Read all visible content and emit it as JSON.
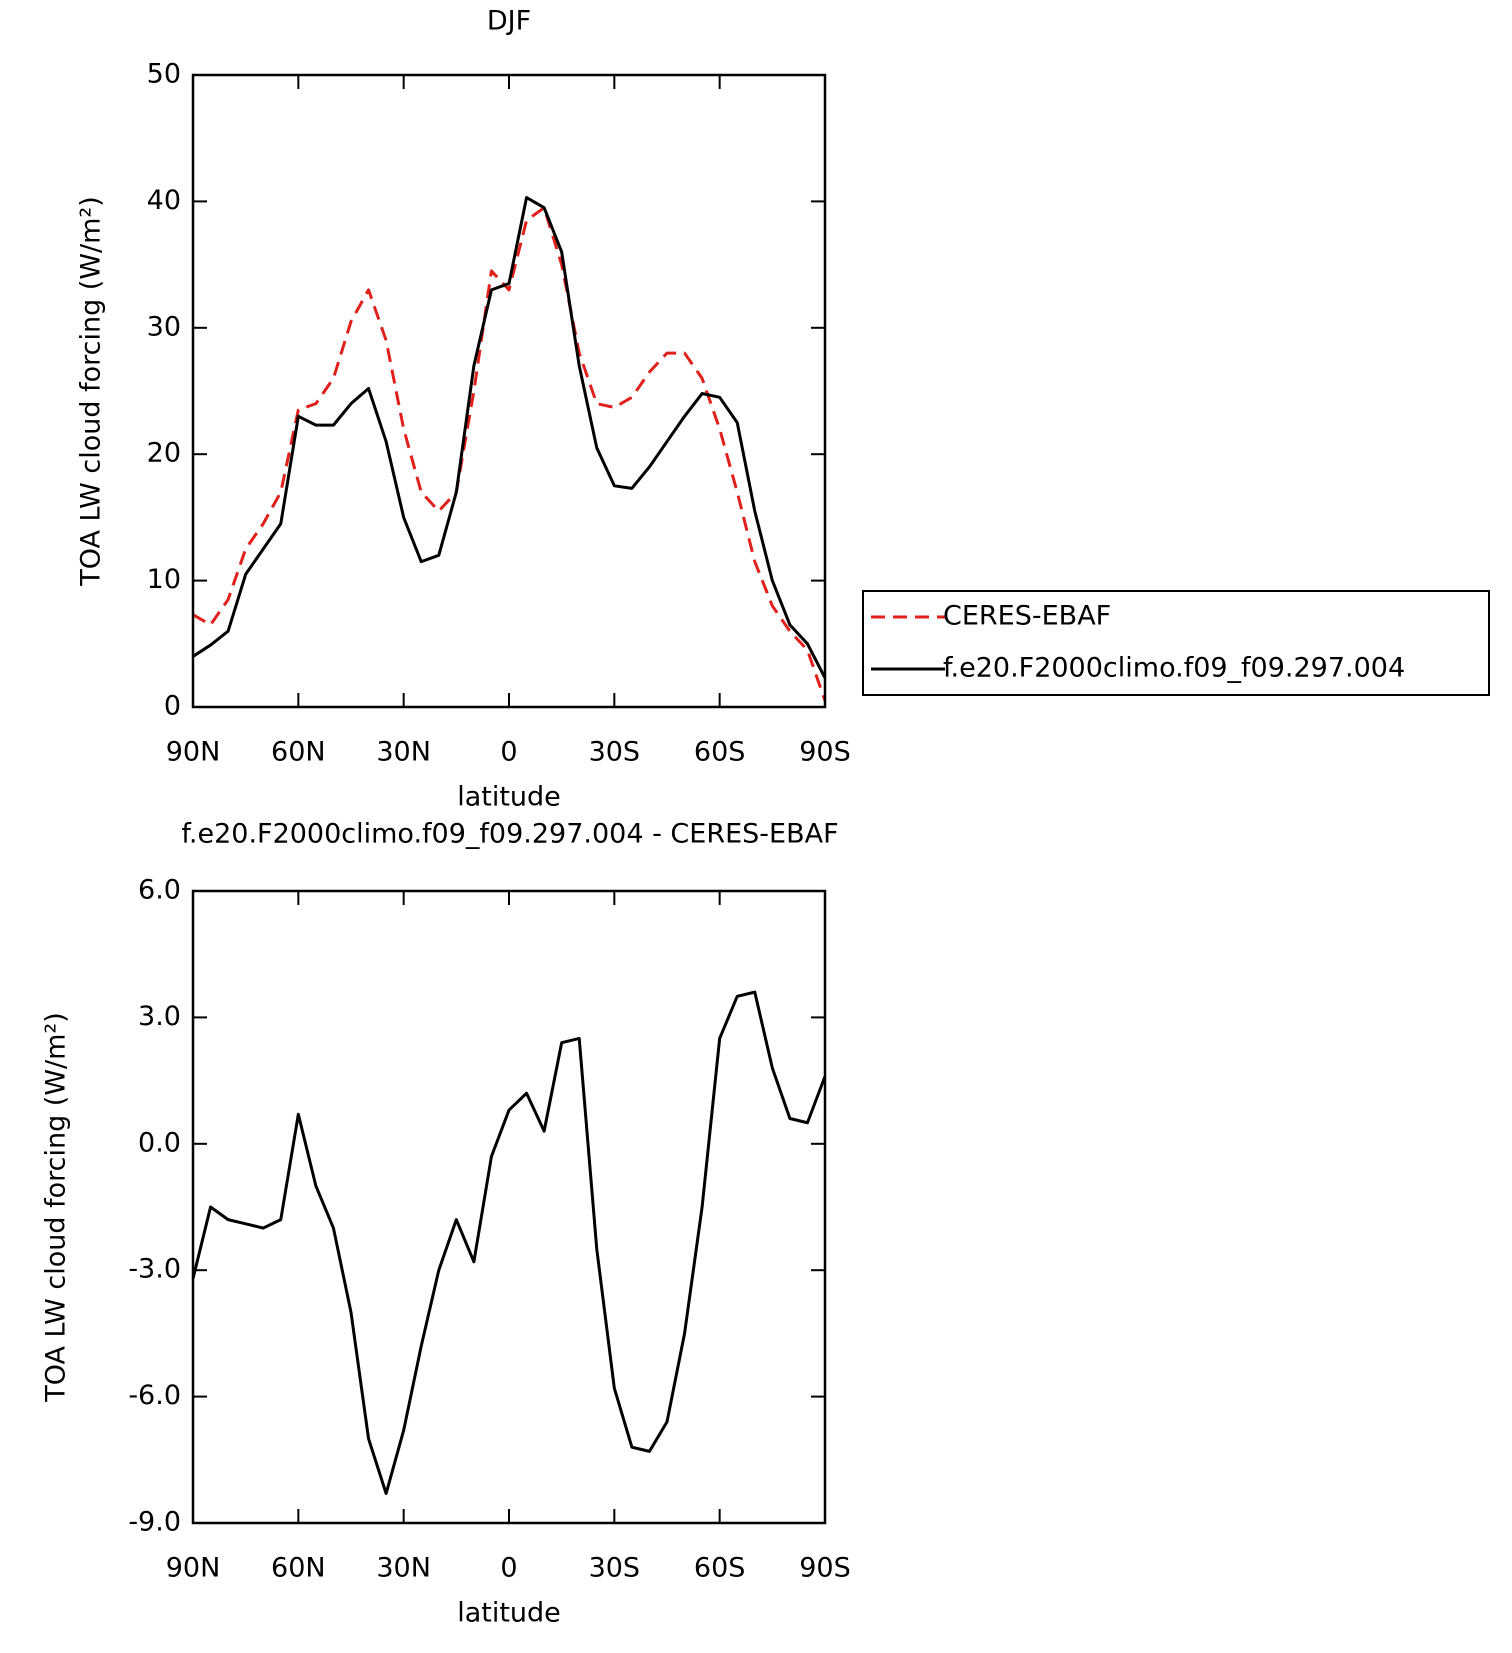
{
  "chart_data": [
    {
      "type": "line",
      "title": "DJF",
      "x_label": "latitude",
      "y_label": "TOA LW cloud forcing (W/m²)",
      "x": [
        90,
        85,
        80,
        75,
        70,
        65,
        60,
        55,
        50,
        45,
        40,
        35,
        30,
        25,
        20,
        15,
        10,
        5,
        0,
        -5,
        -10,
        -15,
        -20,
        -25,
        -30,
        -35,
        -40,
        -45,
        -50,
        -55,
        -60,
        -65,
        -70,
        -75,
        -80,
        -85,
        -90
      ],
      "series": [
        {
          "name": "CERES-EBAF",
          "color": "#e0201b",
          "line_style": "dashed",
          "values": [
            7.3,
            6.5,
            8.5,
            12.5,
            14.5,
            17,
            23.5,
            24,
            26,
            30.5,
            33,
            29,
            22,
            17,
            15.5,
            17,
            25,
            34.5,
            33,
            38.5,
            39.5,
            35,
            28,
            24,
            23.7,
            24.5,
            26.5,
            28,
            28,
            26,
            22,
            17,
            11.5,
            8,
            6,
            4.5,
            0.5
          ]
        },
        {
          "name": "f.e20.F2000climo.f09_f09.297.004",
          "color": "#000000",
          "line_style": "solid",
          "values": [
            4,
            4.9,
            6,
            10.5,
            12.5,
            14.5,
            23,
            22.3,
            22.3,
            24,
            25.2,
            21,
            15,
            11.5,
            12,
            17,
            27,
            33,
            33.5,
            40.3,
            39.5,
            36,
            27,
            20.5,
            17.5,
            17.3,
            19,
            21,
            23,
            24.8,
            24.5,
            22.5,
            15.5,
            10,
            6.5,
            5,
            2.3
          ]
        }
      ],
      "xlim": [
        90,
        -90
      ],
      "xticks": [
        {
          "value": 90,
          "label": "90N"
        },
        {
          "value": 60,
          "label": "60N"
        },
        {
          "value": 30,
          "label": "30N"
        },
        0,
        {
          "value": -30,
          "label": "30S"
        },
        {
          "value": -60,
          "label": "60S"
        },
        {
          "value": -90,
          "label": "90S"
        }
      ],
      "ylim": [
        0,
        50
      ],
      "yticks": [
        0,
        10,
        20,
        30,
        40,
        50
      ],
      "legend": "outside-right"
    },
    {
      "type": "line",
      "title": "f.e20.F2000climo.f09_f09.297.004 - CERES-EBAF",
      "x_label": "latitude",
      "y_label": "TOA LW cloud forcing (W/m²)",
      "x": [
        90,
        85,
        80,
        75,
        70,
        65,
        60,
        55,
        50,
        45,
        40,
        35,
        30,
        25,
        20,
        15,
        10,
        5,
        0,
        -5,
        -10,
        -15,
        -20,
        -25,
        -30,
        -35,
        -40,
        -45,
        -50,
        -55,
        -60,
        -65,
        -70,
        -75,
        -80,
        -85,
        -90
      ],
      "series": [
        {
          "color": "#000000",
          "line_style": "solid",
          "values": [
            -3.2,
            -1.5,
            -1.8,
            -1.9,
            -2.0,
            -1.8,
            0.7,
            -1.0,
            -2.0,
            -4.0,
            -7.0,
            -8.3,
            -6.8,
            -4.8,
            -3.0,
            -1.8,
            -2.8,
            -0.3,
            0.8,
            1.2,
            0.3,
            2.4,
            2.5,
            -2.5,
            -5.8,
            -7.2,
            -7.3,
            -6.6,
            -4.5,
            -1.5,
            2.5,
            3.5,
            3.6,
            1.8,
            0.6,
            0.5,
            1.6
          ]
        }
      ],
      "xlim": [
        90,
        -90
      ],
      "xticks": [
        {
          "value": 90,
          "label": "90N"
        },
        {
          "value": 60,
          "label": "60N"
        },
        {
          "value": 30,
          "label": "30N"
        },
        0,
        {
          "value": -30,
          "label": "30S"
        },
        {
          "value": -60,
          "label": "60S"
        },
        {
          "value": -90,
          "label": "90S"
        }
      ],
      "ylim": [
        -9,
        6
      ],
      "yticks": [
        {
          "value": -9,
          "label": "-9.0"
        },
        {
          "value": -6,
          "label": "-6.0"
        },
        {
          "value": -3,
          "label": "-3.0"
        },
        {
          "value": 0,
          "label": "0.0"
        },
        {
          "value": 3,
          "label": "3.0"
        },
        {
          "value": 6,
          "label": "6.0"
        }
      ]
    }
  ]
}
